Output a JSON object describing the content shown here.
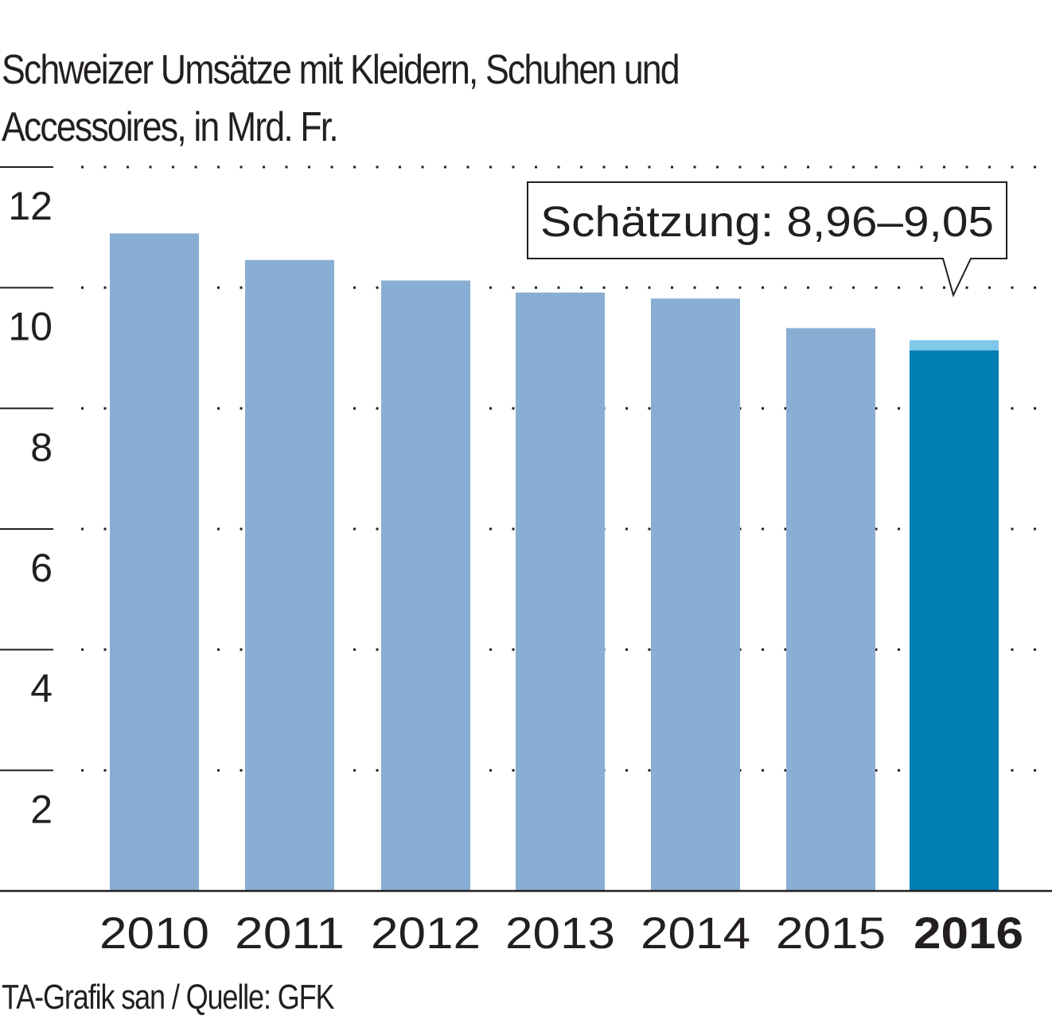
{
  "chart_data": {
    "type": "bar",
    "title": "Schweizer Umsätze mit Kleidern, Schuhen und Accessoires, in Mrd. Fr.",
    "title_lines": [
      "Schweizer Umsätze mit Kleidern, Schuhen und",
      "Accessoires, in Mrd. Fr."
    ],
    "xlabel": "",
    "ylabel": "",
    "categories": [
      "2010",
      "2011",
      "2012",
      "2013",
      "2014",
      "2015",
      "2016"
    ],
    "values": [
      10.9,
      10.46,
      10.12,
      9.92,
      9.82,
      9.33,
      8.96
    ],
    "highlight": {
      "category": "2016",
      "estimate_low": 8.96,
      "estimate_high": 9.05
    },
    "ylim": [
      0,
      12
    ],
    "yticks": [
      2,
      4,
      6,
      8,
      10,
      12
    ],
    "ytick_labels": [
      "2",
      "4",
      "6",
      "8",
      "10",
      "12"
    ],
    "grid": true,
    "annotation": "Schätzung: 8,96–9,05",
    "source": "TA-Grafik san / Quelle: GFK",
    "colors": {
      "bar": "#89aed3",
      "highlight_bar": "#007db3",
      "estimate_range": "#7ec8ea",
      "text": "#231f20"
    }
  }
}
